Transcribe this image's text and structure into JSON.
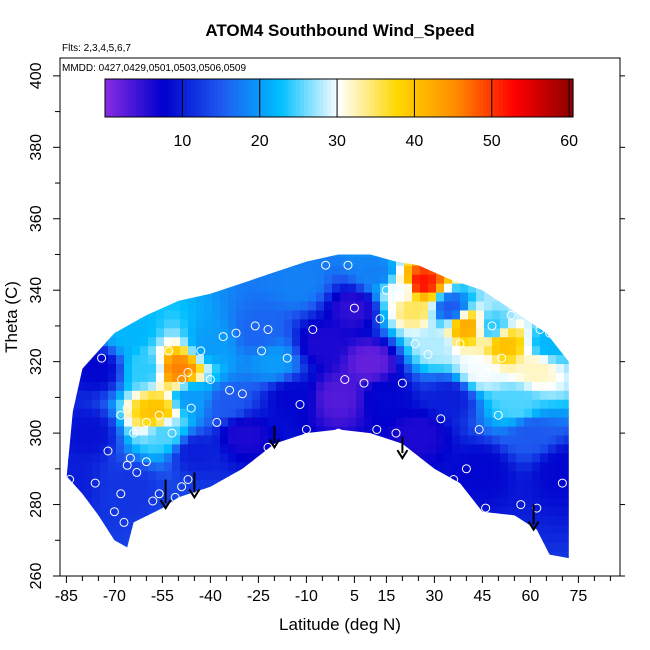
{
  "chart_data": {
    "type": "heatmap",
    "title": "ATOM4 Southbound Wind_Speed",
    "annotations": [
      "Flts: 2,3,4,5,6,7",
      "MMDD: 0427,0429,0501,0503,0506,0509"
    ],
    "xlabel": "Latitude (deg N)",
    "ylabel": "Theta (C)",
    "xlim": [
      -87,
      88
    ],
    "ylim": [
      260,
      405
    ],
    "x_ticks": [
      -85,
      -70,
      -55,
      -40,
      -25,
      -10,
      5,
      15,
      30,
      45,
      60,
      75
    ],
    "y_ticks": [
      260,
      280,
      300,
      320,
      340,
      360,
      380,
      400
    ],
    "colorbar": {
      "range": [
        0,
        60.5
      ],
      "ticks": [
        10,
        20,
        30,
        40,
        50,
        60
      ],
      "colors": [
        "#8a2be2",
        "#0000cd",
        "#1e5af0",
        "#00bfff",
        "#ffffff",
        "#ffd700",
        "#ff8c00",
        "#ff0000",
        "#8b0000"
      ]
    },
    "domain_top": [
      [
        -85,
        287
      ],
      [
        -83,
        306
      ],
      [
        -80,
        318
      ],
      [
        -75,
        323
      ],
      [
        -70,
        328
      ],
      [
        -60,
        333
      ],
      [
        -50,
        337
      ],
      [
        -40,
        339
      ],
      [
        -30,
        342
      ],
      [
        -20,
        345
      ],
      [
        -10,
        348
      ],
      [
        0,
        350
      ],
      [
        10,
        350
      ],
      [
        18,
        348
      ],
      [
        25,
        347
      ],
      [
        35,
        343
      ],
      [
        45,
        340
      ],
      [
        55,
        334
      ],
      [
        65,
        328
      ],
      [
        72,
        320
      ]
    ],
    "domain_bottom": [
      [
        -85,
        288
      ],
      [
        -80,
        283
      ],
      [
        -75,
        277
      ],
      [
        -70,
        270
      ],
      [
        -66,
        268
      ],
      [
        -64,
        275
      ],
      [
        -55,
        279
      ],
      [
        -50,
        282
      ],
      [
        -40,
        285
      ],
      [
        -30,
        290
      ],
      [
        -20,
        297
      ],
      [
        -10,
        300
      ],
      [
        0,
        301
      ],
      [
        10,
        300
      ],
      [
        20,
        297
      ],
      [
        30,
        290
      ],
      [
        38,
        286
      ],
      [
        45,
        278
      ],
      [
        55,
        277
      ],
      [
        62,
        273
      ],
      [
        66,
        266
      ],
      [
        72,
        265
      ],
      [
        72,
        300
      ]
    ],
    "field": [
      {
        "x": -85,
        "y": 287,
        "v": 10
      },
      {
        "x": -78,
        "y": 300,
        "v": 9
      },
      {
        "x": -75,
        "y": 318,
        "v": 8
      },
      {
        "x": -65,
        "y": 328,
        "v": 22
      },
      {
        "x": -60,
        "y": 318,
        "v": 24
      },
      {
        "x": -57,
        "y": 306,
        "v": 40
      },
      {
        "x": -54,
        "y": 300,
        "v": 25
      },
      {
        "x": -50,
        "y": 318,
        "v": 46
      },
      {
        "x": -46,
        "y": 310,
        "v": 20
      },
      {
        "x": -40,
        "y": 325,
        "v": 20
      },
      {
        "x": -35,
        "y": 308,
        "v": 15
      },
      {
        "x": -30,
        "y": 300,
        "v": 6
      },
      {
        "x": -25,
        "y": 328,
        "v": 16
      },
      {
        "x": -20,
        "y": 320,
        "v": 20
      },
      {
        "x": -15,
        "y": 310,
        "v": 8
      },
      {
        "x": -12,
        "y": 342,
        "v": 18
      },
      {
        "x": -5,
        "y": 325,
        "v": 6
      },
      {
        "x": 0,
        "y": 310,
        "v": 3
      },
      {
        "x": 5,
        "y": 335,
        "v": 5
      },
      {
        "x": 10,
        "y": 320,
        "v": 2
      },
      {
        "x": 12,
        "y": 345,
        "v": 18
      },
      {
        "x": 20,
        "y": 340,
        "v": 30
      },
      {
        "x": 24,
        "y": 335,
        "v": 35
      },
      {
        "x": 26,
        "y": 342,
        "v": 52
      },
      {
        "x": 30,
        "y": 325,
        "v": 28
      },
      {
        "x": 35,
        "y": 335,
        "v": 15
      },
      {
        "x": 40,
        "y": 330,
        "v": 42
      },
      {
        "x": 44,
        "y": 318,
        "v": 30
      },
      {
        "x": 48,
        "y": 330,
        "v": 24
      },
      {
        "x": 52,
        "y": 325,
        "v": 40
      },
      {
        "x": 56,
        "y": 308,
        "v": 25
      },
      {
        "x": 60,
        "y": 300,
        "v": 15
      },
      {
        "x": 62,
        "y": 318,
        "v": 32
      },
      {
        "x": 66,
        "y": 325,
        "v": 22
      },
      {
        "x": 70,
        "y": 290,
        "v": 8
      },
      {
        "x": 25,
        "y": 300,
        "v": 6
      },
      {
        "x": 45,
        "y": 290,
        "v": 8
      },
      {
        "x": -65,
        "y": 285,
        "v": 12
      },
      {
        "x": -45,
        "y": 295,
        "v": 10
      },
      {
        "x": 35,
        "y": 310,
        "v": 10
      },
      {
        "x": 15,
        "y": 310,
        "v": 8
      }
    ],
    "observation_points": [
      {
        "x": -84,
        "y": 287
      },
      {
        "x": -76,
        "y": 286
      },
      {
        "x": -72,
        "y": 295
      },
      {
        "x": -74,
        "y": 321
      },
      {
        "x": -68,
        "y": 305
      },
      {
        "x": -66,
        "y": 307
      },
      {
        "x": -64,
        "y": 300
      },
      {
        "x": -66,
        "y": 291
      },
      {
        "x": -65,
        "y": 293
      },
      {
        "x": -70,
        "y": 278
      },
      {
        "x": -68,
        "y": 283
      },
      {
        "x": -67,
        "y": 275
      },
      {
        "x": -63,
        "y": 289
      },
      {
        "x": -60,
        "y": 292
      },
      {
        "x": -58,
        "y": 281
      },
      {
        "x": -56,
        "y": 283
      },
      {
        "x": -51,
        "y": 282
      },
      {
        "x": -49,
        "y": 285
      },
      {
        "x": -47,
        "y": 287
      },
      {
        "x": -60,
        "y": 303
      },
      {
        "x": -56,
        "y": 305
      },
      {
        "x": -52,
        "y": 300
      },
      {
        "x": -49,
        "y": 315
      },
      {
        "x": -46,
        "y": 307
      },
      {
        "x": -47,
        "y": 317
      },
      {
        "x": -43,
        "y": 323
      },
      {
        "x": -40,
        "y": 315
      },
      {
        "x": -38,
        "y": 303
      },
      {
        "x": -36,
        "y": 327
      },
      {
        "x": -34,
        "y": 312
      },
      {
        "x": -32,
        "y": 328
      },
      {
        "x": -30,
        "y": 311
      },
      {
        "x": -26,
        "y": 330
      },
      {
        "x": -24,
        "y": 323
      },
      {
        "x": -22,
        "y": 329
      },
      {
        "x": -22,
        "y": 296
      },
      {
        "x": -16,
        "y": 321
      },
      {
        "x": -12,
        "y": 308
      },
      {
        "x": -10,
        "y": 301
      },
      {
        "x": -8,
        "y": 329
      },
      {
        "x": -4,
        "y": 347
      },
      {
        "x": 0,
        "y": 300
      },
      {
        "x": 2,
        "y": 315
      },
      {
        "x": 3,
        "y": 347
      },
      {
        "x": 5,
        "y": 335
      },
      {
        "x": 8,
        "y": 314
      },
      {
        "x": 12,
        "y": 301
      },
      {
        "x": 13,
        "y": 332
      },
      {
        "x": 15,
        "y": 340
      },
      {
        "x": 18,
        "y": 300
      },
      {
        "x": 20,
        "y": 314
      },
      {
        "x": 24,
        "y": 325
      },
      {
        "x": 28,
        "y": 322
      },
      {
        "x": 32,
        "y": 304
      },
      {
        "x": 36,
        "y": 287
      },
      {
        "x": 40,
        "y": 290
      },
      {
        "x": 44,
        "y": 301
      },
      {
        "x": 46,
        "y": 317
      },
      {
        "x": 48,
        "y": 330
      },
      {
        "x": 50,
        "y": 305
      },
      {
        "x": 51,
        "y": 321
      },
      {
        "x": 54,
        "y": 333
      },
      {
        "x": 57,
        "y": 280
      },
      {
        "x": 62,
        "y": 279
      },
      {
        "x": 63,
        "y": 329
      },
      {
        "x": 66,
        "y": 328
      },
      {
        "x": 70,
        "y": 286
      },
      {
        "x": 46,
        "y": 279
      },
      {
        "x": 38,
        "y": 325
      },
      {
        "x": -53,
        "y": 323
      }
    ],
    "vertical_arrows": [
      {
        "x": -54,
        "y_top": 287,
        "y_bottom": 279
      },
      {
        "x": -45,
        "y_top": 289,
        "y_bottom": 282
      },
      {
        "x": -20,
        "y_top": 302,
        "y_bottom": 296
      },
      {
        "x": 20,
        "y_top": 299,
        "y_bottom": 293
      },
      {
        "x": 61,
        "y_top": 280,
        "y_bottom": 273
      }
    ]
  }
}
